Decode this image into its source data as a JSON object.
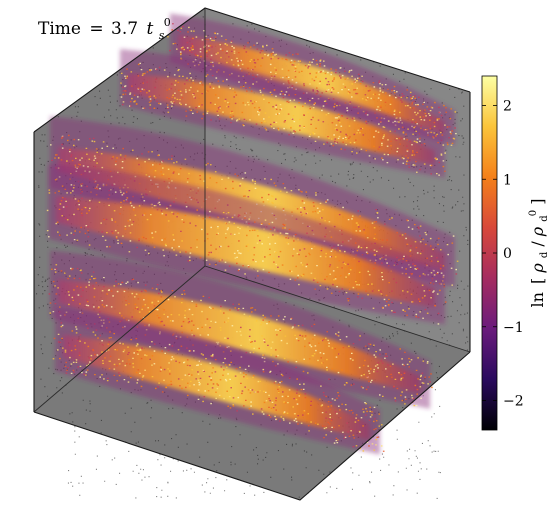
{
  "time_label": {
    "prefix": "Time",
    "equals": "=",
    "value": "3.7",
    "symbol": "t",
    "subscript": "s",
    "superscript": "0"
  },
  "colorbar": {
    "label_prefix": "ln",
    "label_numerator": "ρ",
    "label_numerator_sub": "d",
    "label_slash": "/",
    "label_denominator": "ρ",
    "label_denominator_sub": "d",
    "label_denominator_sup": "0",
    "ticks": [
      {
        "value": 2,
        "label": "2"
      },
      {
        "value": 1,
        "label": "1"
      },
      {
        "value": 0,
        "label": "0"
      },
      {
        "value": -1,
        "label": "−1"
      },
      {
        "value": -2,
        "label": "−2"
      }
    ],
    "range": [
      -2.4,
      2.4
    ],
    "colormap_stops": [
      "#000004",
      "#2a0a5e",
      "#6a1b7c",
      "#a52c60",
      "#d8483a",
      "#f4801a",
      "#fbc43a",
      "#fcffa4"
    ]
  },
  "chart_data": {
    "type": "scatter",
    "subtype": "3d-volume-density",
    "quantity": "ln[ρd/ρd0]",
    "color_range": [
      -2.4,
      2.4
    ],
    "grid": false,
    "legend": "colorbar right",
    "layers": [
      {
        "level": "top-1",
        "peak_value": 2.2
      },
      {
        "level": "top-2",
        "peak_value": 2.3
      },
      {
        "level": "middle-1",
        "peak_value": 2.4
      },
      {
        "level": "middle-2",
        "peak_value": 2.4
      },
      {
        "level": "bottom-1",
        "peak_value": 2.3
      },
      {
        "level": "bottom-2",
        "peak_value": 2.4
      }
    ]
  }
}
